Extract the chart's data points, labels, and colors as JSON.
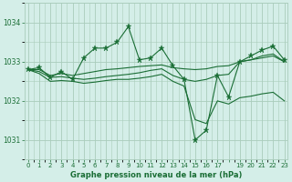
{
  "title": "Graphe pression niveau de la mer (hPa)",
  "bg_color": "#d4eee8",
  "grid_color": "#aaccbb",
  "line_color": "#1a6e35",
  "x_labels": [
    "0",
    "1",
    "2",
    "3",
    "4",
    "5",
    "6",
    "7",
    "8",
    "9",
    "10",
    "11",
    "12",
    "13",
    "14",
    "15",
    "16",
    "17",
    "",
    "19",
    "20",
    "21",
    "22",
    "23"
  ],
  "yticks": [
    1031,
    1032,
    1033,
    1034
  ],
  "ylim": [
    1030.5,
    1034.5
  ],
  "xlim": [
    -0.3,
    23.3
  ],
  "figsize": [
    3.2,
    2.0
  ],
  "dpi": 100,
  "series_spiky": [
    1032.8,
    1032.85,
    1032.6,
    1032.75,
    1032.55,
    1033.1,
    1033.35,
    1033.35,
    1033.5,
    1033.9,
    1033.05,
    1033.1,
    1033.35,
    1032.9,
    1032.55,
    1031.0,
    1031.25,
    1032.65,
    1032.1,
    1033.0,
    1033.15,
    1033.3,
    1033.4,
    1033.05
  ],
  "series_upper": [
    1032.8,
    1032.8,
    1032.65,
    1032.7,
    1032.65,
    1032.7,
    1032.75,
    1032.8,
    1032.82,
    1032.85,
    1032.88,
    1032.9,
    1032.92,
    1032.85,
    1032.82,
    1032.8,
    1032.82,
    1032.88,
    1032.9,
    1033.0,
    1033.05,
    1033.1,
    1033.15,
    1033.0
  ],
  "series_mid": [
    1032.8,
    1032.75,
    1032.6,
    1032.62,
    1032.58,
    1032.55,
    1032.58,
    1032.62,
    1032.65,
    1032.68,
    1032.72,
    1032.78,
    1032.82,
    1032.65,
    1032.55,
    1032.5,
    1032.55,
    1032.65,
    1032.68,
    1033.0,
    1033.05,
    1033.15,
    1033.2,
    1033.0
  ],
  "series_lower": [
    1032.8,
    1032.7,
    1032.5,
    1032.52,
    1032.5,
    1032.45,
    1032.48,
    1032.52,
    1032.55,
    1032.55,
    1032.58,
    1032.62,
    1032.68,
    1032.5,
    1032.38,
    1031.52,
    1031.42,
    1032.0,
    1031.92,
    1032.08,
    1032.12,
    1032.18,
    1032.22,
    1032.0
  ]
}
